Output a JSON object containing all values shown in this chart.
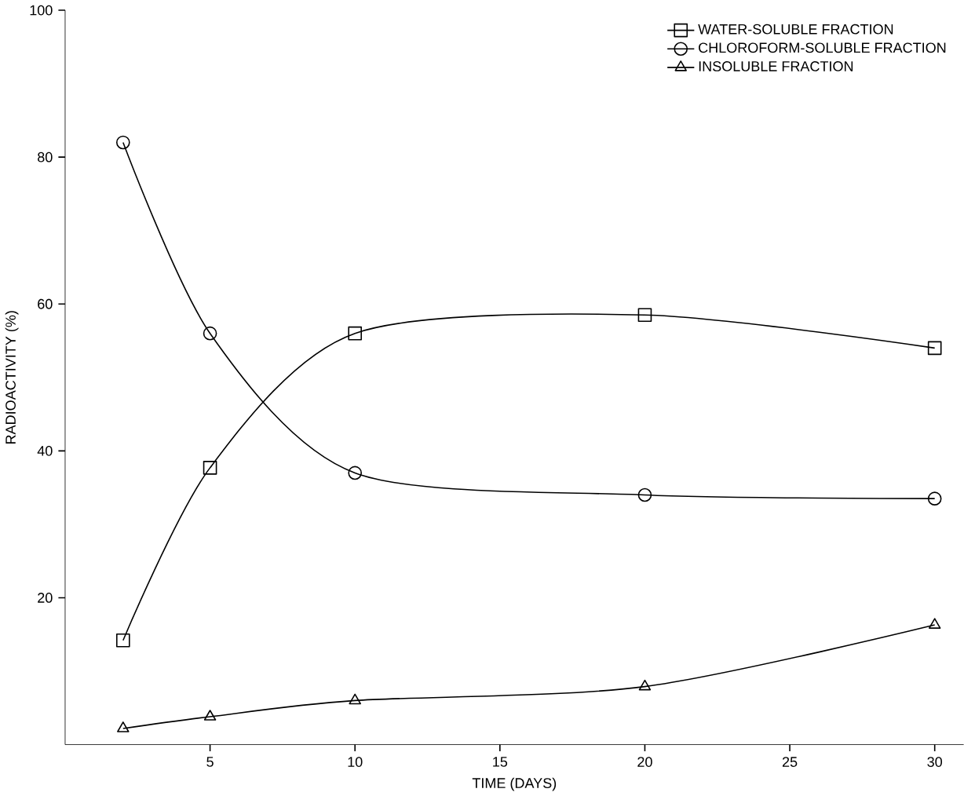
{
  "chart_data": {
    "type": "line",
    "xlabel": "TIME (DAYS)",
    "ylabel": "RADIOACTIVITY (%)",
    "xlim": [
      0,
      31
    ],
    "ylim": [
      0,
      100
    ],
    "xticks": [
      5,
      10,
      15,
      20,
      25,
      30
    ],
    "yticks": [
      20,
      40,
      60,
      80,
      100
    ],
    "x": [
      2,
      5,
      10,
      20,
      30
    ],
    "legend": "top right",
    "grid": false,
    "series": [
      {
        "name": "WATER-SOLUBLE FRACTION",
        "color": "#000000",
        "marker": "square",
        "values": [
          14.2,
          37.7,
          56,
          58.5,
          54
        ]
      },
      {
        "name": "CHLOROFORM-SOLUBLE FRACTION",
        "color": "#000000",
        "marker": "circle",
        "values": [
          82,
          56,
          37,
          34,
          33.5
        ]
      },
      {
        "name": "INSOLUBLE FRACTION",
        "color": "#000000",
        "marker": "triangle",
        "values": [
          2.2,
          3.8,
          6,
          7.9,
          16.3
        ]
      }
    ]
  }
}
